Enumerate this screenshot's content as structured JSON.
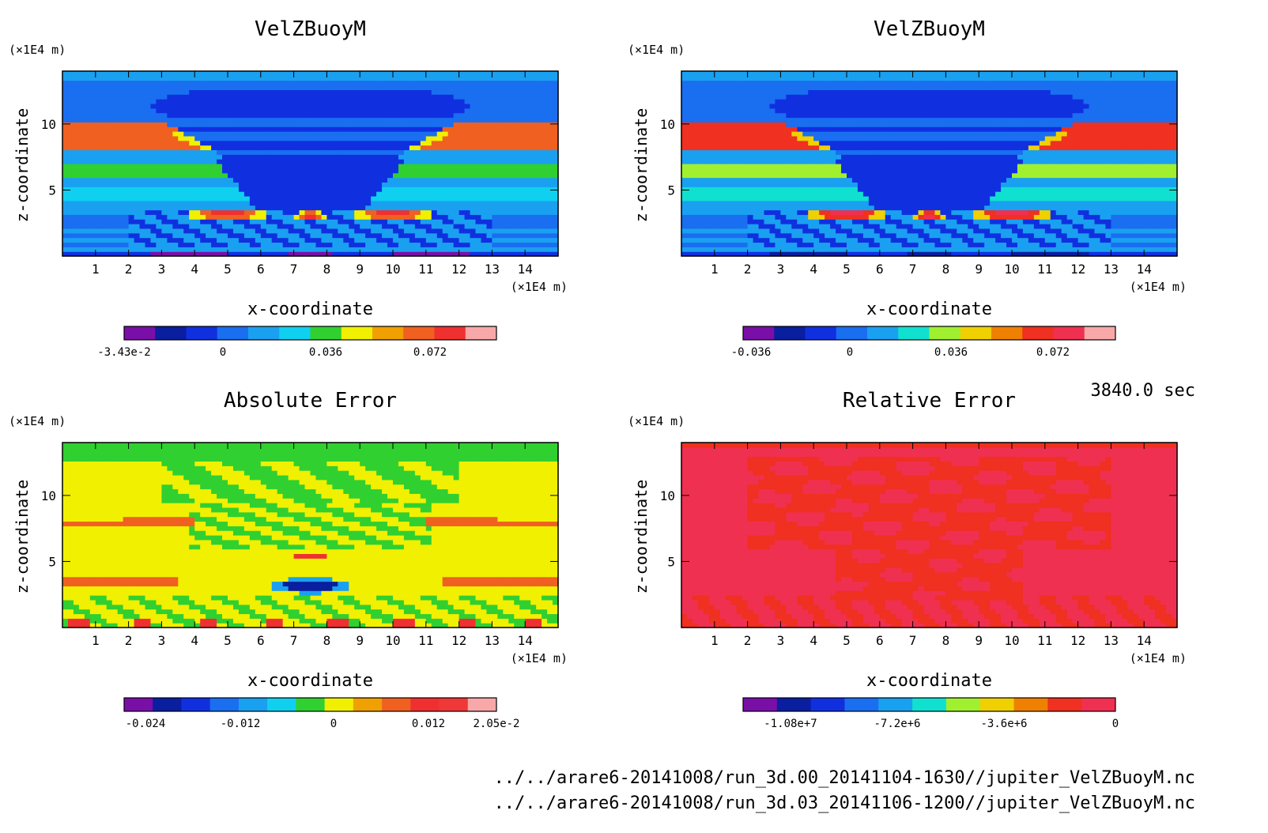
{
  "timestamp": "3840.0 sec",
  "file_paths": [
    "../../arare6-20141008/run_3d.00_20141104-1630//jupiter_VelZBuoyM.nc",
    "../../arare6-20141008/run_3d.03_20141106-1200//jupiter_VelZBuoyM.nc"
  ],
  "chart_data": [
    {
      "type": "heatmap",
      "title": "VelZBuoyM",
      "xlabel": "x-coordinate",
      "ylabel": "z-coordinate",
      "x_unit": "(×1E4 m)",
      "y_unit": "(×1E4 m)",
      "xlim": [
        0,
        15
      ],
      "ylim": [
        0,
        14
      ],
      "x_ticks": [
        "1",
        "2",
        "3",
        "4",
        "5",
        "6",
        "7",
        "8",
        "9",
        "10",
        "11",
        "12",
        "13",
        "14"
      ],
      "y_ticks": [
        "5",
        "10"
      ],
      "colorbar_labels": [
        "-3.43e-2",
        "0",
        "0.036",
        "0.072"
      ],
      "colorbar_colors": [
        "#7a0fa8",
        "#0a1ea0",
        "#1030e0",
        "#1a6ef0",
        "#1aa0f0",
        "#10d0f0",
        "#30d030",
        "#f0f000",
        "#f0a000",
        "#f06020",
        "#f03030",
        "#f8a8a8"
      ],
      "field": "velzbuoy_a"
    },
    {
      "type": "heatmap",
      "title": "VelZBuoyM",
      "xlabel": "x-coordinate",
      "ylabel": "z-coordinate",
      "x_unit": "(×1E4 m)",
      "y_unit": "(×1E4 m)",
      "xlim": [
        0,
        15
      ],
      "ylim": [
        0,
        14
      ],
      "x_ticks": [
        "1",
        "2",
        "3",
        "4",
        "5",
        "6",
        "7",
        "8",
        "9",
        "10",
        "11",
        "12",
        "13",
        "14"
      ],
      "y_ticks": [
        "5",
        "10"
      ],
      "colorbar_labels": [
        "-0.036",
        "0",
        "0.036",
        "0.072"
      ],
      "colorbar_colors": [
        "#7a0fa8",
        "#0a1ea0",
        "#1030e0",
        "#1a6ef0",
        "#1aa0f0",
        "#10e0d0",
        "#a0f030",
        "#f0d000",
        "#f08000",
        "#f03020",
        "#f03050",
        "#f8a8a8"
      ],
      "field": "velzbuoy_b"
    },
    {
      "type": "heatmap",
      "title": "Absolute Error",
      "xlabel": "x-coordinate",
      "ylabel": "z-coordinate",
      "x_unit": "(×1E4 m)",
      "y_unit": "(×1E4 m)",
      "xlim": [
        0,
        15
      ],
      "ylim": [
        0,
        14
      ],
      "x_ticks": [
        "1",
        "2",
        "3",
        "4",
        "5",
        "6",
        "7",
        "8",
        "9",
        "10",
        "11",
        "12",
        "13",
        "14"
      ],
      "y_ticks": [
        "5",
        "10"
      ],
      "colorbar_labels": [
        "-0.024",
        "-0.012",
        "0",
        "0.012",
        "2.05e-2"
      ],
      "colorbar_colors": [
        "#7a0fa8",
        "#0a1ea0",
        "#1030e0",
        "#1a6ef0",
        "#1aa0f0",
        "#10d0f0",
        "#30d030",
        "#f0f000",
        "#f0a000",
        "#f06020",
        "#f03030",
        "#f03838",
        "#f8a8a8"
      ],
      "field": "abs_error"
    },
    {
      "type": "heatmap",
      "title": "Relative Error",
      "xlabel": "x-coordinate",
      "ylabel": "z-coordinate",
      "x_unit": "(×1E4 m)",
      "y_unit": "(×1E4 m)",
      "xlim": [
        0,
        15
      ],
      "ylim": [
        0,
        14
      ],
      "x_ticks": [
        "1",
        "2",
        "3",
        "4",
        "5",
        "6",
        "7",
        "8",
        "9",
        "10",
        "11",
        "12",
        "13",
        "14"
      ],
      "y_ticks": [
        "5",
        "10"
      ],
      "colorbar_labels": [
        "-1.08e+7",
        "-7.2e+6",
        "-3.6e+6",
        "0"
      ],
      "colorbar_colors": [
        "#7a0fa8",
        "#0a1ea0",
        "#1030e0",
        "#1a6ef0",
        "#1aa0f0",
        "#10e0d0",
        "#a0f030",
        "#f0d000",
        "#f08000",
        "#f03020",
        "#f03050"
      ],
      "field": "rel_error"
    }
  ]
}
